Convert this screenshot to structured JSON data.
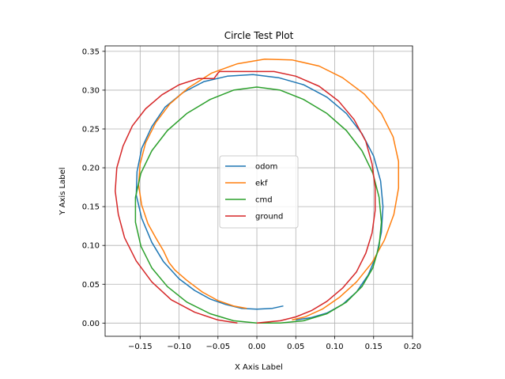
{
  "chart_data": {
    "type": "line",
    "title": "Circle Test Plot",
    "xlabel": "X Axis Label",
    "ylabel": "Y Axis Label",
    "xlim": [
      -0.195,
      0.2
    ],
    "ylim": [
      -0.017,
      0.357
    ],
    "xticks": [
      -0.15,
      -0.1,
      -0.05,
      0.0,
      0.05,
      0.1,
      0.15,
      0.2
    ],
    "xtick_labels": [
      "−0.15",
      "−0.10",
      "−0.05",
      "0.00",
      "0.05",
      "0.10",
      "0.15",
      "0.20"
    ],
    "yticks": [
      0.0,
      0.05,
      0.1,
      0.15,
      0.2,
      0.25,
      0.3,
      0.35
    ],
    "ytick_labels": [
      "0.00",
      "0.05",
      "0.10",
      "0.15",
      "0.20",
      "0.25",
      "0.30",
      "0.35"
    ],
    "grid": true,
    "legend_position": "center",
    "series": [
      {
        "name": "odom",
        "color": "#1f77b4",
        "x": [
          0.034,
          0.02,
          0.0,
          -0.02,
          -0.04,
          -0.06,
          -0.08,
          -0.1,
          -0.12,
          -0.135,
          -0.148,
          -0.155,
          -0.154,
          -0.148,
          -0.135,
          -0.118,
          -0.095,
          -0.068,
          -0.038,
          -0.005,
          0.028,
          0.06,
          0.09,
          0.115,
          0.135,
          0.15,
          0.159,
          0.162,
          0.16,
          0.154,
          0.143,
          0.128,
          0.11,
          0.09,
          0.07,
          0.05
        ],
        "y": [
          0.022,
          0.019,
          0.018,
          0.019,
          0.024,
          0.031,
          0.042,
          0.057,
          0.079,
          0.104,
          0.135,
          0.165,
          0.195,
          0.225,
          0.253,
          0.278,
          0.297,
          0.311,
          0.318,
          0.32,
          0.316,
          0.307,
          0.291,
          0.27,
          0.244,
          0.215,
          0.183,
          0.15,
          0.117,
          0.088,
          0.062,
          0.04,
          0.024,
          0.013,
          0.007,
          0.004
        ]
      },
      {
        "name": "ekf",
        "color": "#ff7f0e",
        "x": [
          -0.013,
          -0.03,
          -0.05,
          -0.07,
          -0.09,
          -0.105,
          -0.113,
          -0.12,
          -0.13,
          -0.14,
          -0.148,
          -0.152,
          -0.15,
          -0.143,
          -0.13,
          -0.112,
          -0.088,
          -0.058,
          -0.025,
          0.01,
          0.045,
          0.08,
          0.11,
          0.138,
          0.16,
          0.175,
          0.182,
          0.182,
          0.176,
          0.164,
          0.148,
          0.128,
          0.106,
          0.084,
          0.062,
          0.045
        ],
        "y": [
          0.019,
          0.022,
          0.029,
          0.04,
          0.055,
          0.068,
          0.078,
          0.093,
          0.11,
          0.128,
          0.152,
          0.178,
          0.205,
          0.232,
          0.258,
          0.282,
          0.303,
          0.322,
          0.334,
          0.34,
          0.339,
          0.331,
          0.316,
          0.295,
          0.27,
          0.24,
          0.208,
          0.174,
          0.14,
          0.107,
          0.078,
          0.053,
          0.033,
          0.018,
          0.008,
          0.004
        ]
      },
      {
        "name": "cmd",
        "color": "#2ca02c",
        "x": [
          0.0,
          -0.03,
          -0.06,
          -0.09,
          -0.115,
          -0.135,
          -0.149,
          -0.156,
          -0.156,
          -0.149,
          -0.135,
          -0.115,
          -0.09,
          -0.06,
          -0.03,
          0.0,
          0.03,
          0.06,
          0.09,
          0.115,
          0.135,
          0.149,
          0.157,
          0.16,
          0.157,
          0.149,
          0.135,
          0.115,
          0.09,
          0.06,
          0.03,
          0.0
        ],
        "y": [
          0.0,
          0.003,
          0.012,
          0.027,
          0.047,
          0.071,
          0.099,
          0.13,
          0.162,
          0.193,
          0.222,
          0.248,
          0.27,
          0.288,
          0.3,
          0.304,
          0.3,
          0.288,
          0.27,
          0.248,
          0.222,
          0.193,
          0.162,
          0.13,
          0.099,
          0.071,
          0.047,
          0.027,
          0.012,
          0.003,
          0.0,
          0.0
        ]
      },
      {
        "name": "ground",
        "color": "#d62728",
        "x": [
          -0.025,
          -0.05,
          -0.08,
          -0.11,
          -0.135,
          -0.155,
          -0.17,
          -0.178,
          -0.182,
          -0.18,
          -0.172,
          -0.16,
          -0.143,
          -0.122,
          -0.1,
          -0.075,
          -0.055,
          -0.05,
          -0.048,
          -0.02,
          0.0,
          0.022,
          0.05,
          0.08,
          0.105,
          0.125,
          0.14,
          0.148,
          0.152,
          0.152,
          0.148,
          0.14,
          0.128,
          0.11,
          0.09,
          0.07,
          0.05,
          0.03,
          0.01,
          0.0
        ],
        "y": [
          0.0,
          0.004,
          0.014,
          0.03,
          0.053,
          0.08,
          0.11,
          0.14,
          0.17,
          0.2,
          0.228,
          0.254,
          0.276,
          0.294,
          0.307,
          0.315,
          0.315,
          0.322,
          0.324,
          0.324,
          0.324,
          0.324,
          0.318,
          0.305,
          0.286,
          0.262,
          0.234,
          0.205,
          0.175,
          0.145,
          0.116,
          0.09,
          0.066,
          0.045,
          0.028,
          0.016,
          0.008,
          0.003,
          0.001,
          0.0
        ]
      }
    ]
  }
}
